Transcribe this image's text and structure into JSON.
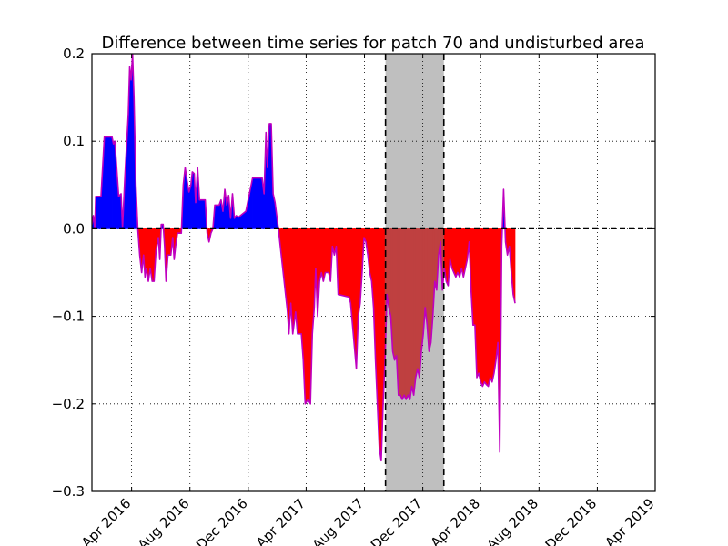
{
  "chart_data": {
    "type": "area",
    "title": "Difference between time series for patch 70 and undisturbed area",
    "xlabel": "",
    "ylabel": "",
    "xlim": [
      "2016-01-09",
      "2019-04-01"
    ],
    "ylim": [
      -0.3,
      0.2
    ],
    "x_ticks": [
      "2016-04-01",
      "2016-08-01",
      "2016-12-01",
      "2017-04-01",
      "2017-08-01",
      "2017-12-01",
      "2018-04-01",
      "2018-08-01",
      "2018-12-01",
      "2019-04-01"
    ],
    "x_tick_labels": [
      "Apr 2016",
      "Aug 2016",
      "Dec 2016",
      "Apr 2017",
      "Aug 2017",
      "Dec 2017",
      "Apr 2018",
      "Aug 2018",
      "Dec 2018",
      "Apr 2019"
    ],
    "y_ticks": [
      -0.3,
      -0.2,
      -0.1,
      0.0,
      0.1,
      0.2
    ],
    "y_tick_labels": [
      "−0.3",
      "−0.2",
      "−0.1",
      "0.0",
      "0.1",
      "0.2"
    ],
    "grid": true,
    "grid_style": "dotted",
    "baseline": 0.0,
    "shaded_interval": [
      "2017-09-14",
      "2018-01-14"
    ],
    "colors": {
      "positive_fill": "#0000ff",
      "negative_fill": "#ff0000",
      "line": "#bf00bf",
      "shaded_region": "#bfbfbf",
      "shaded_overlay_fill": "#bf4040"
    },
    "series": [
      {
        "points": [
          [
            "2016-01-09",
            0.005
          ],
          [
            "2016-01-12",
            0.015
          ],
          [
            "2016-01-15",
            0.0
          ],
          [
            "2016-01-17",
            0.037
          ],
          [
            "2016-01-28",
            0.037
          ],
          [
            "2016-02-04",
            0.105
          ],
          [
            "2016-02-20",
            0.105
          ],
          [
            "2016-02-23",
            0.097
          ],
          [
            "2016-02-26",
            0.1
          ],
          [
            "2016-03-05",
            0.037
          ],
          [
            "2016-03-10",
            0.04
          ],
          [
            "2016-03-13",
            0.002
          ],
          [
            "2016-03-18",
            0.06
          ],
          [
            "2016-03-25",
            0.13
          ],
          [
            "2016-03-28",
            0.185
          ],
          [
            "2016-03-31",
            0.17
          ],
          [
            "2016-04-03",
            0.2
          ],
          [
            "2016-04-06",
            0.15
          ],
          [
            "2016-04-10",
            0.05
          ],
          [
            "2016-04-14",
            0.0
          ],
          [
            "2016-04-18",
            -0.03
          ],
          [
            "2016-04-22",
            -0.05
          ],
          [
            "2016-04-26",
            -0.03
          ],
          [
            "2016-04-29",
            -0.055
          ],
          [
            "2016-05-02",
            -0.045
          ],
          [
            "2016-05-06",
            -0.06
          ],
          [
            "2016-05-10",
            -0.045
          ],
          [
            "2016-05-14",
            -0.06
          ],
          [
            "2016-05-18",
            -0.06
          ],
          [
            "2016-05-22",
            -0.025
          ],
          [
            "2016-05-27",
            -0.01
          ],
          [
            "2016-05-30",
            -0.035
          ],
          [
            "2016-06-02",
            0.005
          ],
          [
            "2016-06-06",
            0.005
          ],
          [
            "2016-06-09",
            -0.02
          ],
          [
            "2016-06-12",
            -0.06
          ],
          [
            "2016-06-16",
            -0.03
          ],
          [
            "2016-06-22",
            -0.03
          ],
          [
            "2016-06-26",
            -0.01
          ],
          [
            "2016-06-29",
            -0.035
          ],
          [
            "2016-07-02",
            -0.02
          ],
          [
            "2016-07-06",
            -0.005
          ],
          [
            "2016-07-10",
            -0.005
          ],
          [
            "2016-07-14",
            -0.005
          ],
          [
            "2016-07-18",
            0.05
          ],
          [
            "2016-07-22",
            0.07
          ],
          [
            "2016-07-26",
            0.055
          ],
          [
            "2016-07-30",
            0.042
          ],
          [
            "2016-08-03",
            0.05
          ],
          [
            "2016-08-06",
            0.065
          ],
          [
            "2016-08-10",
            0.063
          ],
          [
            "2016-08-13",
            0.03
          ],
          [
            "2016-08-17",
            0.07
          ],
          [
            "2016-08-21",
            0.033
          ],
          [
            "2016-09-02",
            0.033
          ],
          [
            "2016-09-06",
            -0.005
          ],
          [
            "2016-09-10",
            -0.015
          ],
          [
            "2016-09-14",
            -0.005
          ],
          [
            "2016-09-18",
            0.0
          ],
          [
            "2016-09-22",
            0.027
          ],
          [
            "2016-10-01",
            0.027
          ],
          [
            "2016-10-05",
            0.033
          ],
          [
            "2016-10-09",
            0.02
          ],
          [
            "2016-10-13",
            0.045
          ],
          [
            "2016-10-17",
            0.027
          ],
          [
            "2016-10-21",
            0.038
          ],
          [
            "2016-10-25",
            0.012
          ],
          [
            "2016-10-29",
            0.04
          ],
          [
            "2016-11-02",
            0.012
          ],
          [
            "2016-11-06",
            0.015
          ],
          [
            "2016-11-10",
            0.013
          ],
          [
            "2016-11-26",
            0.02
          ],
          [
            "2016-12-10",
            0.058
          ],
          [
            "2016-12-30",
            0.058
          ],
          [
            "2017-01-03",
            0.04
          ],
          [
            "2017-01-07",
            0.11
          ],
          [
            "2017-01-10",
            0.07
          ],
          [
            "2017-01-14",
            0.12
          ],
          [
            "2017-01-18",
            0.12
          ],
          [
            "2017-01-22",
            0.04
          ],
          [
            "2017-01-26",
            0.03
          ],
          [
            "2017-02-02",
            0.0
          ],
          [
            "2017-02-10",
            -0.04
          ],
          [
            "2017-02-17",
            -0.075
          ],
          [
            "2017-02-21",
            -0.095
          ],
          [
            "2017-02-24",
            -0.12
          ],
          [
            "2017-02-28",
            -0.085
          ],
          [
            "2017-03-04",
            -0.12
          ],
          [
            "2017-03-10",
            -0.095
          ],
          [
            "2017-03-14",
            -0.12
          ],
          [
            "2017-03-22",
            -0.12
          ],
          [
            "2017-03-26",
            -0.15
          ],
          [
            "2017-03-30",
            -0.2
          ],
          [
            "2017-04-05",
            -0.195
          ],
          [
            "2017-04-10",
            -0.2
          ],
          [
            "2017-04-14",
            -0.12
          ],
          [
            "2017-04-18",
            -0.09
          ],
          [
            "2017-04-21",
            -0.045
          ],
          [
            "2017-04-25",
            -0.1
          ],
          [
            "2017-04-29",
            -0.06
          ],
          [
            "2017-05-03",
            -0.05
          ],
          [
            "2017-05-07",
            -0.06
          ],
          [
            "2017-05-11",
            -0.05
          ],
          [
            "2017-05-18",
            -0.05
          ],
          [
            "2017-05-22",
            -0.06
          ],
          [
            "2017-05-26",
            -0.02
          ],
          [
            "2017-05-30",
            -0.03
          ],
          [
            "2017-06-03",
            -0.02
          ],
          [
            "2017-06-07",
            -0.075
          ],
          [
            "2017-06-30",
            -0.078
          ],
          [
            "2017-07-03",
            -0.085
          ],
          [
            "2017-07-07",
            -0.11
          ],
          [
            "2017-07-11",
            -0.135
          ],
          [
            "2017-07-15",
            -0.16
          ],
          [
            "2017-07-19",
            -0.1
          ],
          [
            "2017-07-23",
            -0.085
          ],
          [
            "2017-07-27",
            -0.05
          ],
          [
            "2017-07-31",
            -0.01
          ],
          [
            "2017-08-04",
            -0.015
          ],
          [
            "2017-08-08",
            -0.03
          ],
          [
            "2017-08-12",
            -0.05
          ],
          [
            "2017-08-16",
            -0.06
          ],
          [
            "2017-08-20",
            -0.09
          ],
          [
            "2017-08-24",
            -0.15
          ],
          [
            "2017-08-28",
            -0.2
          ],
          [
            "2017-09-01",
            -0.25
          ],
          [
            "2017-09-05",
            -0.265
          ],
          [
            "2017-09-09",
            -0.2
          ],
          [
            "2017-09-13",
            -0.15
          ],
          [
            "2017-09-17",
            -0.075
          ],
          [
            "2017-09-21",
            -0.09
          ],
          [
            "2017-09-25",
            -0.1
          ],
          [
            "2017-09-29",
            -0.14
          ],
          [
            "2017-10-03",
            -0.15
          ],
          [
            "2017-10-07",
            -0.145
          ],
          [
            "2017-10-11",
            -0.19
          ],
          [
            "2017-10-15",
            -0.19
          ],
          [
            "2017-10-19",
            -0.195
          ],
          [
            "2017-10-23",
            -0.19
          ],
          [
            "2017-10-27",
            -0.195
          ],
          [
            "2017-10-31",
            -0.19
          ],
          [
            "2017-11-04",
            -0.195
          ],
          [
            "2017-11-08",
            -0.18
          ],
          [
            "2017-11-12",
            -0.19
          ],
          [
            "2017-11-16",
            -0.17
          ],
          [
            "2017-11-20",
            -0.16
          ],
          [
            "2017-11-24",
            -0.17
          ],
          [
            "2017-11-28",
            -0.14
          ],
          [
            "2017-12-02",
            -0.12
          ],
          [
            "2017-12-06",
            -0.09
          ],
          [
            "2017-12-10",
            -0.11
          ],
          [
            "2017-12-14",
            -0.14
          ],
          [
            "2017-12-18",
            -0.13
          ],
          [
            "2017-12-22",
            -0.1
          ],
          [
            "2017-12-26",
            -0.06
          ],
          [
            "2017-12-30",
            -0.07
          ],
          [
            "2018-01-03",
            -0.03
          ],
          [
            "2018-01-07",
            -0.015
          ],
          [
            "2018-01-11",
            -0.07
          ],
          [
            "2018-01-15",
            -0.045
          ],
          [
            "2018-01-19",
            -0.06
          ],
          [
            "2018-01-23",
            -0.065
          ],
          [
            "2018-01-27",
            -0.035
          ],
          [
            "2018-01-31",
            -0.045
          ],
          [
            "2018-02-04",
            -0.05
          ],
          [
            "2018-02-08",
            -0.055
          ],
          [
            "2018-02-12",
            -0.05
          ],
          [
            "2018-02-16",
            -0.055
          ],
          [
            "2018-02-20",
            -0.045
          ],
          [
            "2018-02-24",
            -0.055
          ],
          [
            "2018-02-28",
            -0.045
          ],
          [
            "2018-03-04",
            -0.035
          ],
          [
            "2018-03-08",
            -0.015
          ],
          [
            "2018-03-12",
            -0.07
          ],
          [
            "2018-03-16",
            -0.11
          ],
          [
            "2018-03-20",
            -0.11
          ],
          [
            "2018-03-24",
            -0.17
          ],
          [
            "2018-03-28",
            -0.165
          ],
          [
            "2018-04-01",
            -0.175
          ],
          [
            "2018-04-05",
            -0.18
          ],
          [
            "2018-04-09",
            -0.175
          ],
          [
            "2018-04-13",
            -0.178
          ],
          [
            "2018-04-17",
            -0.18
          ],
          [
            "2018-04-21",
            -0.17
          ],
          [
            "2018-04-25",
            -0.175
          ],
          [
            "2018-04-29",
            -0.165
          ],
          [
            "2018-05-03",
            -0.15
          ],
          [
            "2018-05-07",
            -0.13
          ],
          [
            "2018-05-11",
            -0.255
          ],
          [
            "2018-05-15",
            -0.02
          ],
          [
            "2018-05-19",
            0.045
          ],
          [
            "2018-05-23",
            -0.015
          ],
          [
            "2018-05-27",
            -0.03
          ],
          [
            "2018-05-31",
            -0.02
          ],
          [
            "2018-06-04",
            -0.05
          ],
          [
            "2018-06-08",
            -0.075
          ],
          [
            "2018-06-12",
            -0.085
          ]
        ]
      }
    ]
  }
}
